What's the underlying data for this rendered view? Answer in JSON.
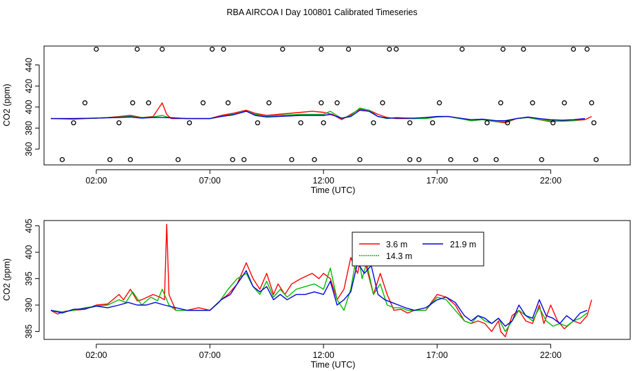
{
  "page_title": "RBA AIRCOA I  Day 100801  Calibrated Timeseries",
  "chart_data": [
    {
      "type": "line",
      "name": "top-panel",
      "title": "",
      "xlabel": "Time (UTC)",
      "ylabel": "CO2 (ppm)",
      "xlim": [
        -0.3,
        25.5
      ],
      "ylim": [
        345,
        458
      ],
      "x_ticks": [
        {
          "value": 2,
          "label": "02:00"
        },
        {
          "value": 7,
          "label": "07:00"
        },
        {
          "value": 12,
          "label": "12:00"
        },
        {
          "value": 17,
          "label": "17:00"
        },
        {
          "value": 22,
          "label": "22:00"
        }
      ],
      "y_ticks": [
        {
          "value": 360,
          "label": "360"
        },
        {
          "value": 380,
          "label": "380"
        },
        {
          "value": 400,
          "label": "400"
        },
        {
          "value": 420,
          "label": "420"
        },
        {
          "value": 440,
          "label": "440"
        }
      ],
      "grid": false,
      "series": [
        {
          "name": "3.6 m",
          "color": "#ff0000",
          "x": [
            0.0,
            1.0,
            2.0,
            2.5,
            3.0,
            3.5,
            4.0,
            4.5,
            4.9,
            5.1,
            5.3,
            6.0,
            7.0,
            7.5,
            8.0,
            8.6,
            9.0,
            9.5,
            10.0,
            10.5,
            11.0,
            11.5,
            12.0,
            12.4,
            12.8,
            13.2,
            13.6,
            14.0,
            14.4,
            14.8,
            15.2,
            16.0,
            16.5,
            17.0,
            17.5,
            18.0,
            18.5,
            19.0,
            19.6,
            20.0,
            20.5,
            21.0,
            21.5,
            22.0,
            22.5,
            23.0,
            23.5,
            23.8
          ],
          "y": [
            389,
            388.5,
            389.5,
            390,
            391,
            392,
            390,
            391,
            404,
            393,
            389,
            389,
            389,
            392,
            394,
            397,
            394,
            392,
            393,
            394,
            395,
            396,
            395,
            393,
            388,
            393,
            398,
            397,
            393,
            390,
            389,
            389,
            390,
            391,
            391,
            389,
            387,
            388,
            386,
            385,
            389,
            390,
            388,
            386,
            387,
            387,
            388,
            391
          ]
        },
        {
          "name": "14.3 m",
          "color": "#00bb00",
          "x": [
            0.0,
            1.0,
            2.0,
            3.0,
            3.5,
            4.0,
            4.5,
            4.9,
            5.2,
            6.0,
            7.0,
            7.5,
            8.0,
            8.6,
            9.0,
            9.5,
            10.0,
            11.0,
            12.0,
            12.3,
            12.8,
            13.2,
            13.6,
            14.0,
            14.4,
            14.8,
            15.2,
            16.0,
            16.5,
            17.0,
            17.5,
            18.0,
            18.5,
            19.0,
            19.6,
            20.0,
            20.5,
            21.0,
            21.5,
            22.0,
            22.5,
            23.0,
            23.5
          ],
          "y": [
            389,
            389,
            389.5,
            390.5,
            391,
            390,
            390.5,
            392,
            390,
            389,
            389,
            391,
            393,
            396,
            393,
            391,
            392,
            393,
            393,
            396,
            389,
            392,
            399,
            397,
            391,
            389,
            390,
            389,
            389,
            390.5,
            391,
            389,
            387,
            388,
            386,
            386,
            389,
            390,
            388,
            387,
            386.5,
            387,
            389
          ]
        },
        {
          "name": "21.9 m",
          "color": "#0000dd",
          "x": [
            0.0,
            1.0,
            2.0,
            3.0,
            3.5,
            4.0,
            4.5,
            5.0,
            5.5,
            6.0,
            7.0,
            7.5,
            8.0,
            8.6,
            9.0,
            9.5,
            10.0,
            11.0,
            12.0,
            12.3,
            12.8,
            13.2,
            13.6,
            14.0,
            14.4,
            14.8,
            15.2,
            16.0,
            16.5,
            17.0,
            17.5,
            18.0,
            18.5,
            19.0,
            19.6,
            20.0,
            20.5,
            21.0,
            21.5,
            22.0,
            22.5,
            23.0,
            23.5
          ],
          "y": [
            389,
            389,
            389.5,
            390,
            390.5,
            389.5,
            390,
            390,
            389.5,
            389,
            389,
            391,
            392.5,
            396,
            392,
            390.5,
            391,
            392,
            392,
            393,
            389.5,
            391,
            397,
            396,
            391,
            389.5,
            389.5,
            389.5,
            390,
            391,
            391,
            389.5,
            388,
            388.5,
            387,
            387,
            389,
            390.5,
            389,
            388,
            387.5,
            388,
            389
          ]
        },
        {
          "name": "calibration-points",
          "color": "#000000",
          "x": [
            0.5,
            1.0,
            1.5,
            2.0,
            2.6,
            3.0,
            3.5,
            3.6,
            3.8,
            4.3,
            4.9,
            5.6,
            6.1,
            6.7,
            7.1,
            7.6,
            7.8,
            8.0,
            8.5,
            9.1,
            9.6,
            10.2,
            10.6,
            11.0,
            11.6,
            11.9,
            11.9,
            12.0,
            12.6,
            13.1,
            13.6,
            14.2,
            14.6,
            14.9,
            15.2,
            15.8,
            15.8,
            16.2,
            16.8,
            17.1,
            17.6,
            18.1,
            18.7,
            19.2,
            19.6,
            19.8,
            19.9,
            20.1,
            20.8,
            21.2,
            21.6,
            22.1,
            22.6,
            23.0,
            23.6,
            23.8,
            23.9,
            24.0
          ],
          "y": [
            350,
            385,
            404,
            455,
            350,
            385,
            350,
            404,
            455,
            404,
            455,
            350,
            385,
            404,
            455,
            455,
            404,
            350,
            350,
            385,
            404,
            455,
            350,
            385,
            350,
            404,
            455,
            385,
            404,
            455,
            350,
            385,
            404,
            455,
            455,
            385,
            350,
            350,
            385,
            404,
            350,
            455,
            350,
            385,
            350,
            404,
            455,
            385,
            455,
            404,
            350,
            385,
            404,
            455,
            455,
            404,
            385,
            350
          ]
        }
      ]
    },
    {
      "type": "line",
      "name": "bottom-panel",
      "title": "",
      "xlabel": "Time (UTC)",
      "ylabel": "CO2 (ppm)",
      "xlim": [
        -0.3,
        25.5
      ],
      "ylim": [
        383.5,
        406
      ],
      "x_ticks": [
        {
          "value": 2,
          "label": "02:00"
        },
        {
          "value": 7,
          "label": "07:00"
        },
        {
          "value": 12,
          "label": "12:00"
        },
        {
          "value": 17,
          "label": "17:00"
        },
        {
          "value": 22,
          "label": "22:00"
        }
      ],
      "y_ticks": [
        {
          "value": 385,
          "label": "385"
        },
        {
          "value": 390,
          "label": "390"
        },
        {
          "value": 395,
          "label": "395"
        },
        {
          "value": 400,
          "label": "400"
        },
        {
          "value": 405,
          "label": "405"
        }
      ],
      "grid": false,
      "legend": {
        "position": "top-center",
        "entries": [
          "3.6 m",
          "21.9 m",
          "14.3 m"
        ]
      },
      "series": [
        {
          "name": "3.6 m",
          "color": "#ff0000",
          "x": [
            0.0,
            0.3,
            0.6,
            1.0,
            1.5,
            2.0,
            2.5,
            3.0,
            3.2,
            3.5,
            3.8,
            4.0,
            4.5,
            4.8,
            5.0,
            5.1,
            5.2,
            5.5,
            6.0,
            6.5,
            7.0,
            7.5,
            7.8,
            8.2,
            8.6,
            8.9,
            9.2,
            9.5,
            9.8,
            10.0,
            10.3,
            10.6,
            11.0,
            11.5,
            11.8,
            12.0,
            12.3,
            12.6,
            12.9,
            13.2,
            13.5,
            13.7,
            13.9,
            14.2,
            14.5,
            14.8,
            15.1,
            15.4,
            15.7,
            16.0,
            16.5,
            17.0,
            17.4,
            17.8,
            18.2,
            18.5,
            18.8,
            19.1,
            19.4,
            19.7,
            19.8,
            20.0,
            20.3,
            20.6,
            20.9,
            21.2,
            21.5,
            21.7,
            22.0,
            22.3,
            22.6,
            23.0,
            23.3,
            23.6,
            23.8
          ],
          "y": [
            389,
            388.3,
            388.8,
            389,
            389.2,
            390,
            390.2,
            392,
            391,
            393,
            390.8,
            391,
            392,
            391.5,
            391,
            405.3,
            392,
            389,
            389,
            389.5,
            389,
            391,
            392,
            394,
            398,
            395,
            393,
            396,
            392,
            394,
            392,
            394,
            395,
            396,
            395,
            396,
            395,
            391,
            393,
            399,
            396,
            400,
            397,
            392,
            396,
            392,
            389,
            389.2,
            388.5,
            389,
            389,
            392,
            391.5,
            390,
            387,
            386.5,
            387,
            386.5,
            385,
            387,
            385,
            384,
            388,
            389,
            387,
            386.5,
            390,
            386.5,
            390,
            387,
            385.5,
            387,
            386.5,
            388,
            391
          ]
        },
        {
          "name": "14.3 m",
          "color": "#00bb00",
          "x": [
            0.0,
            0.5,
            1.0,
            1.5,
            2.0,
            2.5,
            3.0,
            3.3,
            3.6,
            4.0,
            4.4,
            4.7,
            4.9,
            5.2,
            5.5,
            6.0,
            7.0,
            7.4,
            7.8,
            8.2,
            8.6,
            8.9,
            9.2,
            9.5,
            9.8,
            10.1,
            10.4,
            10.8,
            11.2,
            11.6,
            12.0,
            12.3,
            12.6,
            12.9,
            13.2,
            13.5,
            13.7,
            13.9,
            14.2,
            14.5,
            14.8,
            15.1,
            15.4,
            15.7,
            16.0,
            16.5,
            17.0,
            17.4,
            17.8,
            18.2,
            18.5,
            18.8,
            19.1,
            19.4,
            19.7,
            20.0,
            20.3,
            20.6,
            20.9,
            21.2,
            21.5,
            21.8,
            22.1,
            22.4,
            22.7,
            23.0,
            23.3,
            23.6
          ],
          "y": [
            389,
            388.7,
            389,
            389.5,
            389.8,
            390,
            391,
            390.5,
            392.5,
            390,
            391.5,
            390.8,
            393,
            390,
            389,
            389,
            389,
            390.5,
            393,
            395,
            396,
            393.5,
            392,
            394.5,
            391.5,
            393,
            391.5,
            393,
            393.5,
            394,
            393,
            397,
            391,
            389,
            393,
            400.5,
            395,
            398,
            392,
            394,
            390,
            389.5,
            389.5,
            389,
            389,
            389,
            391.5,
            391,
            389,
            387,
            386.5,
            388,
            387,
            386.5,
            387.5,
            385,
            387,
            389,
            388,
            387,
            389.5,
            387,
            386,
            386.5,
            386,
            387,
            387.5,
            388.5
          ]
        },
        {
          "name": "21.9 m",
          "color": "#0000dd",
          "x": [
            0.0,
            0.5,
            1.0,
            1.5,
            2.0,
            2.5,
            3.0,
            3.4,
            3.8,
            4.2,
            4.6,
            5.0,
            5.5,
            6.0,
            7.0,
            7.5,
            7.9,
            8.2,
            8.6,
            8.9,
            9.2,
            9.5,
            9.8,
            10.1,
            10.4,
            10.8,
            11.2,
            11.6,
            12.0,
            12.3,
            12.6,
            12.9,
            13.2,
            13.5,
            13.8,
            14.1,
            14.4,
            14.7,
            15.0,
            15.3,
            15.6,
            16.0,
            16.5,
            17.0,
            17.4,
            17.8,
            18.2,
            18.5,
            18.8,
            19.1,
            19.4,
            19.7,
            20.0,
            20.3,
            20.6,
            20.9,
            21.2,
            21.5,
            21.8,
            22.1,
            22.4,
            22.7,
            23.0,
            23.3,
            23.6
          ],
          "y": [
            389,
            388.5,
            389.2,
            389.3,
            389.8,
            389.5,
            390,
            390.5,
            390,
            390,
            390.5,
            390,
            389.5,
            389,
            389,
            391,
            392,
            394,
            396.5,
            393.5,
            392.5,
            393.5,
            391,
            392,
            391,
            392,
            392,
            392.5,
            392,
            394.5,
            390,
            391,
            392.5,
            398,
            396,
            397.5,
            392,
            391,
            390.5,
            390,
            389.5,
            389,
            389.5,
            391,
            391.5,
            390.5,
            388,
            387,
            388,
            387.5,
            386.5,
            387.5,
            386,
            387,
            390,
            388,
            387.5,
            391,
            388,
            387.5,
            386.5,
            388,
            387,
            388.5,
            389
          ]
        }
      ]
    }
  ]
}
